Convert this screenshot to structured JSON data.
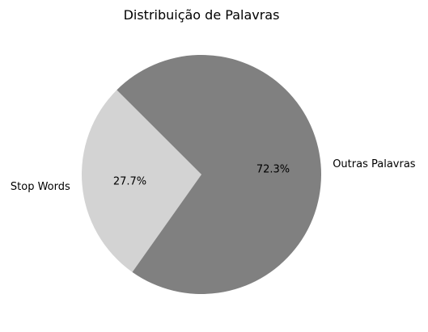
{
  "chart_data": {
    "type": "pie",
    "title": "Distribuição de Palavras",
    "start_angle_deg": 135,
    "direction": "counterclockwise",
    "slices": [
      {
        "label": "Stop Words",
        "value": 27.7,
        "pct_label": "27.7%",
        "color": "#d3d3d3"
      },
      {
        "label": "Outras Palavras",
        "value": 72.3,
        "pct_label": "72.3%",
        "color": "#808080"
      }
    ]
  }
}
